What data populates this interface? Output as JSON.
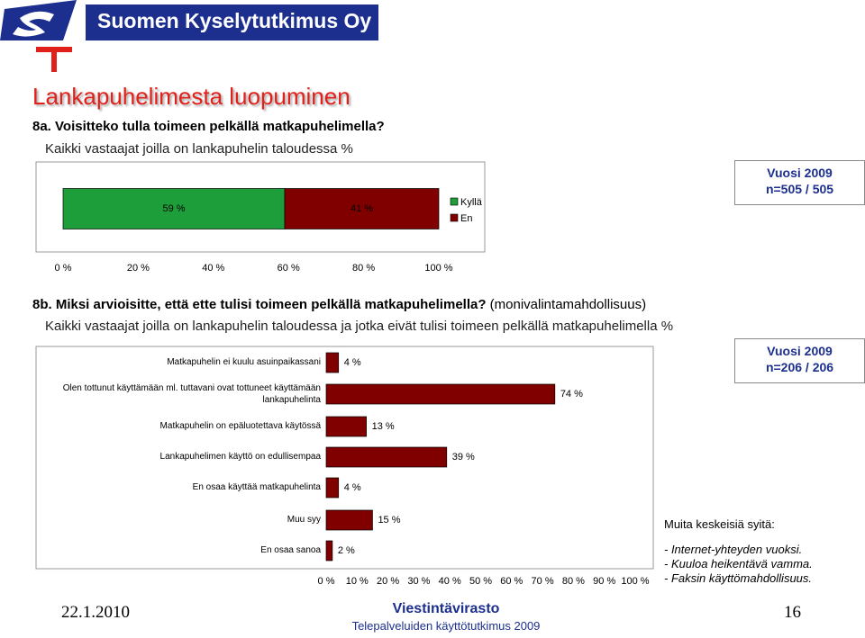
{
  "header": {
    "company": "Suomen Kyselytutkimus Oy",
    "title": "Lankapuhelimesta luopuminen"
  },
  "chart_data": [
    {
      "type": "bar",
      "orientation": "horizontal",
      "stacked": true,
      "title": "8a. Voisitteko tulla toimeen pelkällä matkapuhelimella?",
      "subtitle": "Kaikki vastaajat joilla on lankapuhelin taloudessa %",
      "categories": [
        null
      ],
      "series": [
        {
          "name": "Kyllä",
          "color": "#1e9e3a",
          "values": [
            59
          ],
          "value_labels": [
            "59 %"
          ]
        },
        {
          "name": "En",
          "color": "#800000",
          "values": [
            41
          ],
          "value_labels": [
            "41 %"
          ]
        }
      ],
      "xlim": [
        0,
        100
      ],
      "xticks": [
        {
          "value": 0,
          "label": "0 %"
        },
        {
          "value": 20,
          "label": "20 %"
        },
        {
          "value": 40,
          "label": "40 %"
        },
        {
          "value": 60,
          "label": "60 %"
        },
        {
          "value": 80,
          "label": "80 %"
        },
        {
          "value": 100,
          "label": "100 %"
        }
      ],
      "legend": "right",
      "annotations": [
        "Vuosi 2009",
        "n=505 / 505"
      ]
    },
    {
      "type": "bar",
      "orientation": "horizontal",
      "stacked": false,
      "title": "8b. Miksi arvioisitte, että ette tulisi toimeen pelkällä matkapuhelimella?",
      "title_note": "(monivalintamahdollisuus)",
      "subtitle": "Kaikki vastaajat joilla on lankapuhelin taloudessa ja jotka eivät tulisi toimeen pelkällä matkapuhelimella %",
      "categories": [
        "Matkapuhelin ei kuulu asuinpaikassani",
        "Olen tottunut käyttämään ml. tuttavani ovat tottuneet käyttämään lankapuhelinta",
        "Matkapuhelin on epäluotettava käytössä",
        "Lankapuhelimen käyttö on edullisempaa",
        "En osaa käyttää matkapuhelinta",
        "Muu syy",
        "En osaa sanoa"
      ],
      "series": [
        {
          "color": "#800000",
          "values": [
            4,
            74,
            13,
            39,
            4,
            15,
            2
          ],
          "value_labels": [
            "4 %",
            "74 %",
            "13 %",
            "39 %",
            "4 %",
            "15 %",
            "2 %"
          ]
        }
      ],
      "xlim": [
        0,
        100
      ],
      "xticks": [
        {
          "value": 0,
          "label": "0 %"
        },
        {
          "value": 10,
          "label": "10 %"
        },
        {
          "value": 20,
          "label": "20 %"
        },
        {
          "value": 30,
          "label": "30 %"
        },
        {
          "value": 40,
          "label": "40 %"
        },
        {
          "value": 50,
          "label": "50 %"
        },
        {
          "value": 60,
          "label": "60 %"
        },
        {
          "value": 70,
          "label": "70 %"
        },
        {
          "value": 80,
          "label": "80 %"
        },
        {
          "value": 90,
          "label": "90 %"
        },
        {
          "value": 100,
          "label": "100 %"
        }
      ],
      "annotations": [
        "Vuosi 2009",
        "n=206 / 206"
      ]
    }
  ],
  "notes": {
    "title": "Muita keskeisiä syitä:",
    "items": [
      "- Internet-yhteyden vuoksi.",
      "- Kuuloa heikentävä vamma.",
      "- Faksin käyttömahdollisuus."
    ]
  },
  "footer": {
    "date": "22.1.2010",
    "org": "Viestintävirasto",
    "study": "Telepalveluiden käyttötutkimus 2009",
    "page": "16"
  }
}
